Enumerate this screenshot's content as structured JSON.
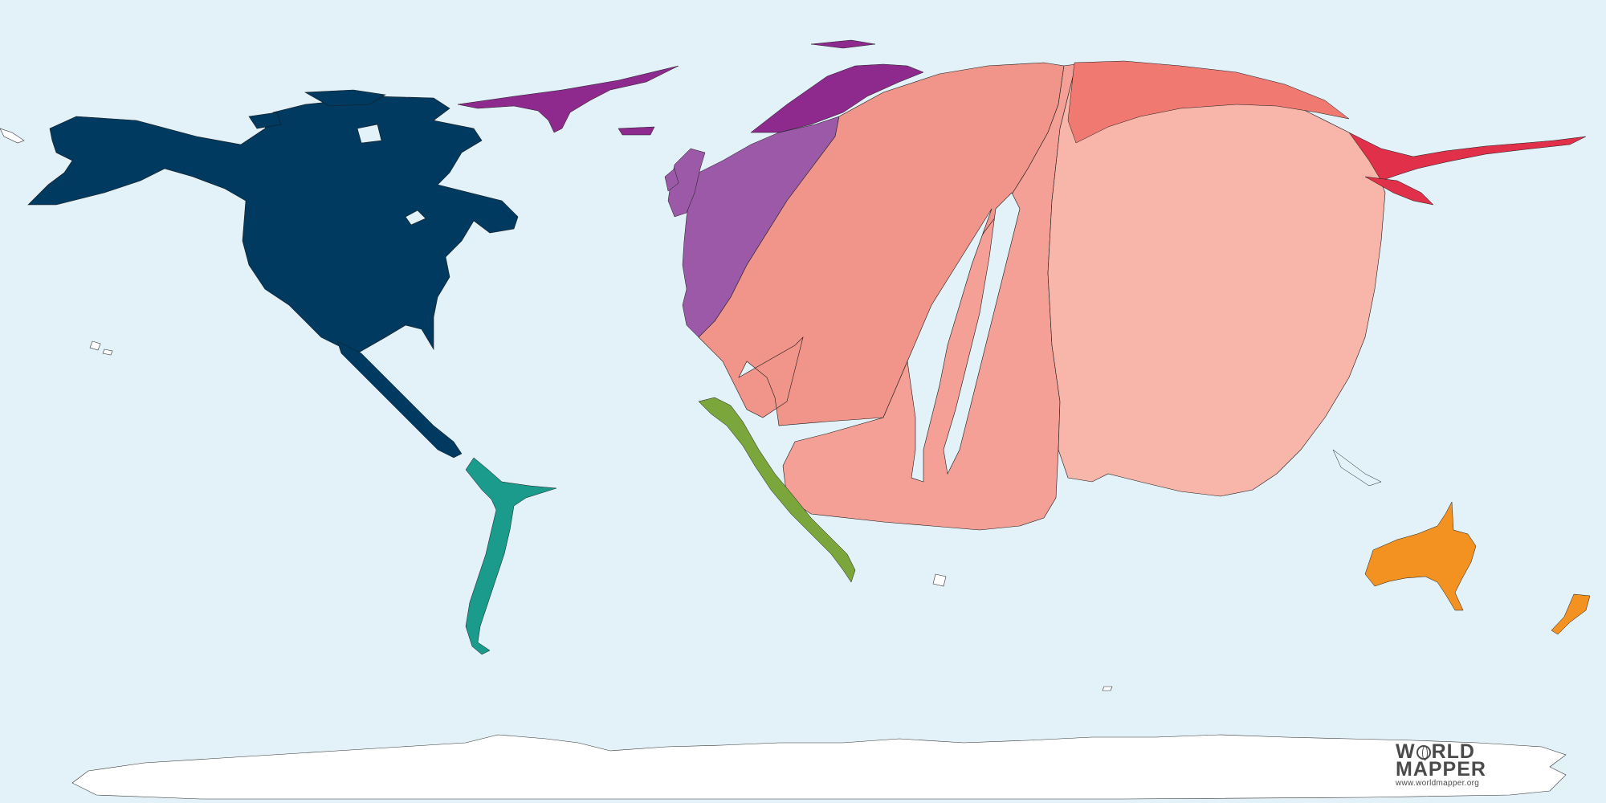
{
  "map": {
    "title": "",
    "background_color": "#e3f2f9",
    "regions": [
      {
        "name": "North America",
        "color": "#003a60"
      },
      {
        "name": "South America",
        "color": "#1a9b8c"
      },
      {
        "name": "Western Europe",
        "color": "#9b59a8"
      },
      {
        "name": "Eastern Europe",
        "color": "#8e2a8e"
      },
      {
        "name": "Middle East",
        "color": "#f1948a"
      },
      {
        "name": "South Asia",
        "color": "#f5a096"
      },
      {
        "name": "East Asia",
        "color": "#f8b5a9"
      },
      {
        "name": "Russia",
        "color": "#f07a72"
      },
      {
        "name": "Japan",
        "color": "#e0304a"
      },
      {
        "name": "Africa",
        "color": "#7aa63c"
      },
      {
        "name": "Oceania",
        "color": "#f39220"
      },
      {
        "name": "Antarctica",
        "color": "#ffffff"
      }
    ]
  },
  "logo": {
    "line1_a": "W",
    "line1_b": "RLD",
    "line2": "MAPPER",
    "url": "www.worldmapper.org"
  }
}
